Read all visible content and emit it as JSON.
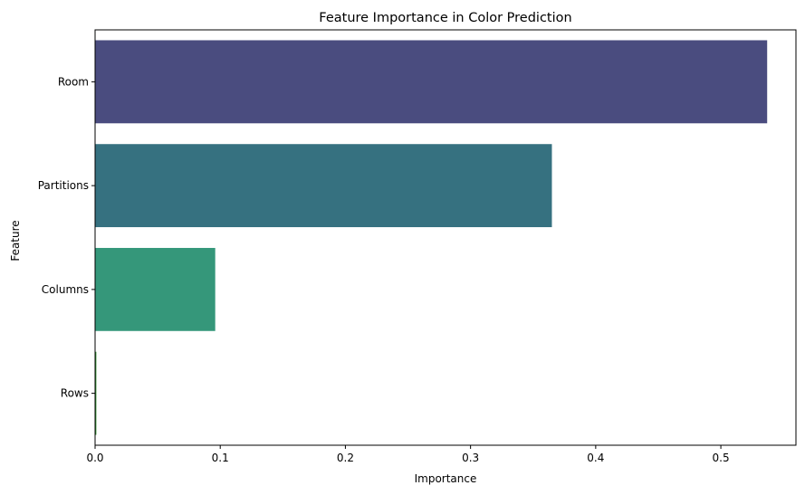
{
  "chart_data": {
    "type": "bar",
    "orientation": "horizontal",
    "title": "Feature Importance in Color Prediction",
    "xlabel": "Importance",
    "ylabel": "Feature",
    "categories": [
      "Room",
      "Partitions",
      "Columns",
      "Rows"
    ],
    "values": [
      0.537,
      0.365,
      0.096,
      0.001
    ],
    "colors": [
      "#4a4c7f",
      "#367180",
      "#35977a",
      "#2e8a2e"
    ],
    "xlim": [
      0,
      0.56
    ],
    "xticks": [
      0.0,
      0.1,
      0.2,
      0.3,
      0.4,
      0.5
    ],
    "xtick_labels": [
      "0.0",
      "0.1",
      "0.2",
      "0.3",
      "0.4",
      "0.5"
    ],
    "grid": false,
    "legend": false
  }
}
